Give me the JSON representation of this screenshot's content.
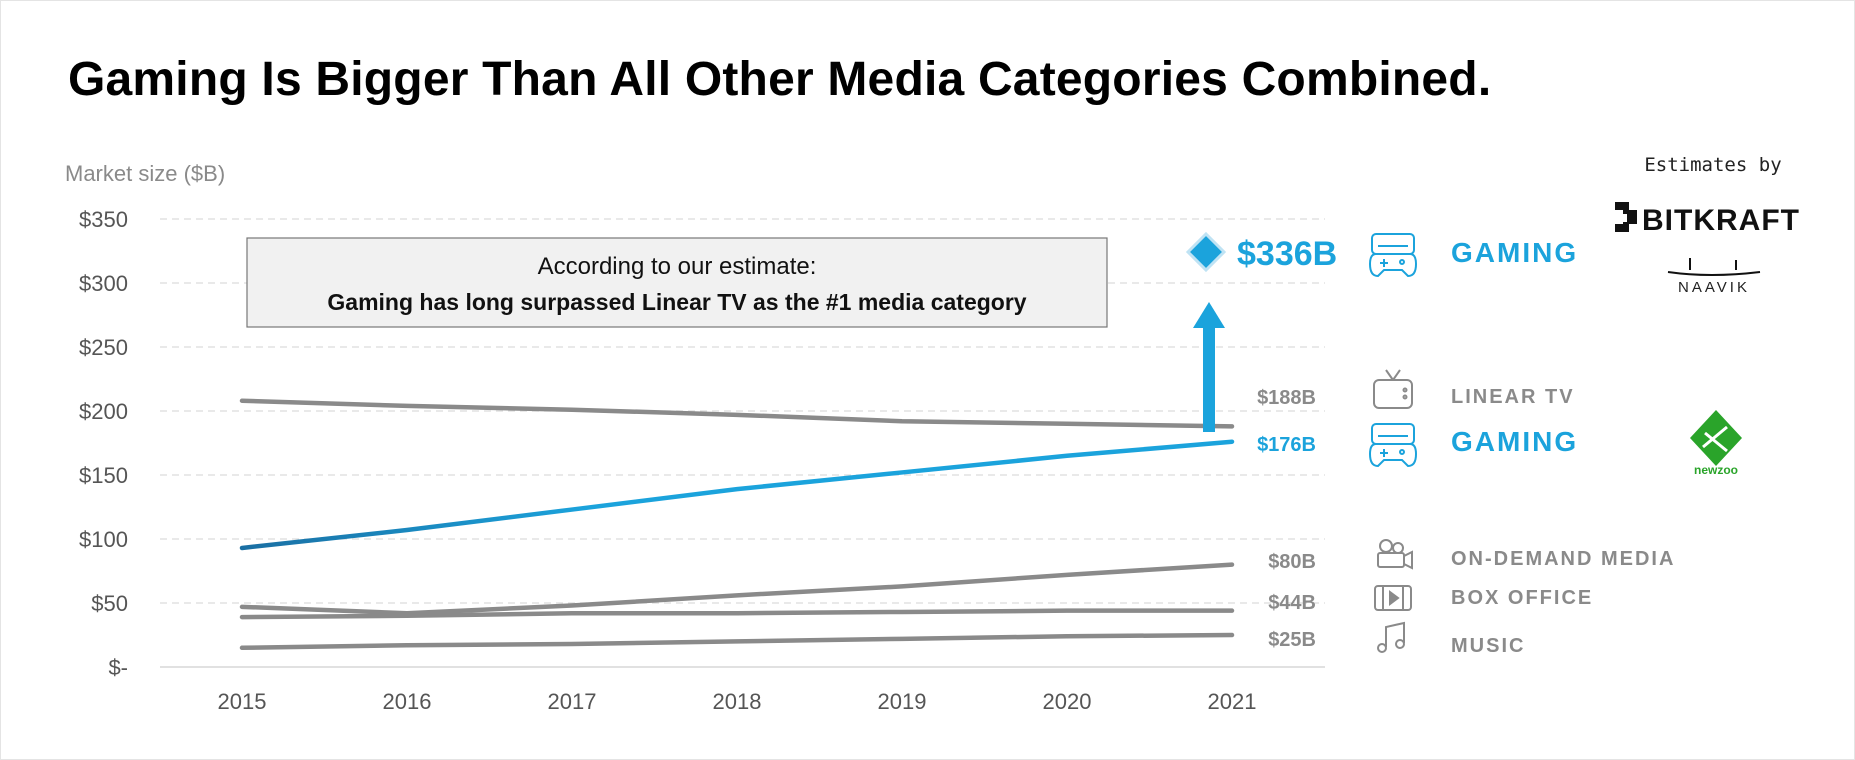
{
  "title": "Gaming Is Bigger Than All Other Media Categories Combined.",
  "chart_data": {
    "type": "line",
    "ylabel": "Market size ($B)",
    "ylim": [
      0,
      350
    ],
    "yticks": [
      {
        "value": 350,
        "label": "$350"
      },
      {
        "value": 300,
        "label": "$300"
      },
      {
        "value": 250,
        "label": "$250"
      },
      {
        "value": 200,
        "label": "$200"
      },
      {
        "value": 150,
        "label": "$150"
      },
      {
        "value": 100,
        "label": "$100"
      },
      {
        "value": 50,
        "label": "$50"
      },
      {
        "value": 0,
        "label": "$-"
      }
    ],
    "x": [
      "2015",
      "2016",
      "2017",
      "2018",
      "2019",
      "2020",
      "2021"
    ],
    "grid": "horizontal dashed",
    "series": [
      {
        "name": "LINEAR TV",
        "values": [
          208,
          204,
          201,
          197,
          192,
          190,
          188
        ],
        "end_label": "$188B",
        "color": "#8a8a8a"
      },
      {
        "name": "GAMING",
        "values": [
          93,
          107,
          123,
          139,
          152,
          165,
          176
        ],
        "end_label": "$176B",
        "color": "#1ba3dc"
      },
      {
        "name": "ON-DEMAND MEDIA",
        "values": [
          47,
          42,
          48,
          56,
          63,
          72,
          80
        ],
        "end_label": "$80B",
        "color": "#8a8a8a"
      },
      {
        "name": "BOX OFFICE",
        "values": [
          39,
          40,
          42,
          42,
          43,
          44,
          44
        ],
        "end_label": "$44B",
        "color": "#8a8a8a"
      },
      {
        "name": "MUSIC",
        "values": [
          15,
          17,
          18,
          20,
          22,
          24,
          25
        ],
        "end_label": "$25B",
        "color": "#8a8a8a"
      }
    ],
    "estimate": {
      "value": 336,
      "label": "$336B",
      "category": "GAMING"
    },
    "annotation": {
      "line1": "According to our estimate:",
      "line2": "Gaming has long surpassed Linear TV as the #1 media category"
    },
    "credits": {
      "estimates_by": "Estimates by",
      "bitkraft": "BITKRAFT",
      "naavik": "NAAVIK",
      "newzoo": "newzoo"
    }
  },
  "colors": {
    "gaming": "#1ba3dc",
    "other": "#8a8a8a",
    "grid": "#d9d9d9"
  },
  "icons": {
    "gaming": "gamepad-icon",
    "linear_tv": "tv-icon",
    "on_demand": "video-camera-icon",
    "box_office": "film-icon",
    "music": "music-note-icon"
  }
}
